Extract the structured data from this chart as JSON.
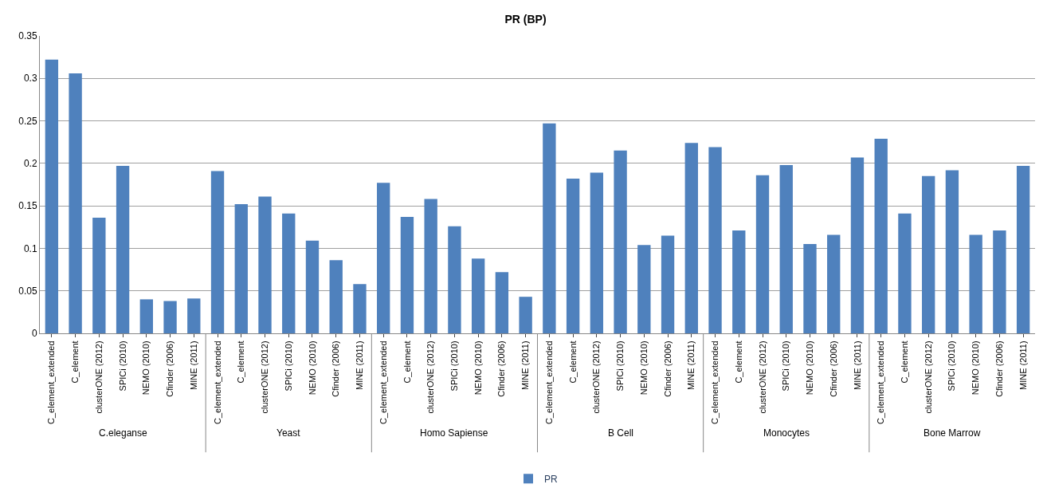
{
  "chart_data": {
    "type": "bar",
    "title": "PR (BP)",
    "categories": [
      "C_element_extended",
      "C_element",
      "clusterONE (2012)",
      "SPICi (2010)",
      "NEMO (2010)",
      "Cfinder (2006)",
      "MINE (2011)",
      "C_element_extended",
      "C_element",
      "clusterONE (2012)",
      "SPICi (2010)",
      "NEMO (2010)",
      "Cfinder (2006)",
      "MINE (2011)",
      "C_element_extended",
      "C_element",
      "clusterONE (2012)",
      "SPICi (2010)",
      "NEMO (2010)",
      "Cfinder (2006)",
      "MINE (2011)",
      "C_element_extended",
      "C_element",
      "clusterONE (2012)",
      "SPICi (2010)",
      "NEMO (2010)",
      "Cfinder (2006)",
      "MINE (2011)",
      "C_element_extended",
      "C_element",
      "clusterONE (2012)",
      "SPICi (2010)",
      "NEMO (2010)",
      "Cfinder (2006)",
      "MINE (2011)",
      "C_element_extended",
      "C_element",
      "clusterONE (2012)",
      "SPICi (2010)",
      "NEMO (2010)",
      "Cfinder (2006)",
      "MINE (2011)"
    ],
    "series": [
      {
        "name": "PR",
        "color": "#4f81bd",
        "values": [
          0.322,
          0.306,
          0.136,
          0.197,
          0.04,
          0.038,
          0.041,
          0.191,
          0.152,
          0.161,
          0.141,
          0.109,
          0.086,
          0.058,
          0.177,
          0.137,
          0.158,
          0.126,
          0.088,
          0.072,
          0.043,
          0.247,
          0.182,
          0.189,
          0.215,
          0.104,
          0.115,
          0.224,
          0.219,
          0.121,
          0.186,
          0.198,
          0.105,
          0.116,
          0.207,
          0.229,
          0.141,
          0.185,
          0.192,
          0.116,
          0.121,
          0.197
        ]
      }
    ],
    "annotations": [
      "C.eleganse",
      "Yeast",
      "Homo Sapiense",
      "B Cell",
      "Monocytes",
      "Bone Marrow"
    ],
    "ylim": [
      0,
      0.35
    ],
    "yticks": [
      0,
      0.05,
      0.1,
      0.15,
      0.2,
      0.25,
      0.3,
      0.35
    ],
    "grid": "y",
    "legend": "bottom"
  }
}
